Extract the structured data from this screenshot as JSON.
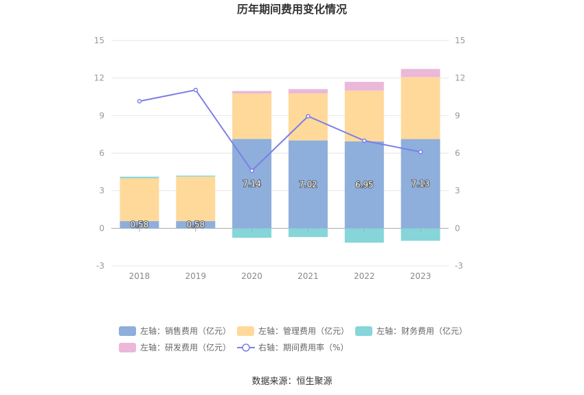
{
  "chart_data": {
    "type": "bar",
    "title": "历年期间费用变化情况",
    "categories": [
      "2018",
      "2019",
      "2020",
      "2021",
      "2022",
      "2023"
    ],
    "series": [
      {
        "name": "左轴：销售费用（亿元）",
        "axis": "left",
        "kind": "bar",
        "color": "#8eaedb",
        "values": [
          0.58,
          0.58,
          7.14,
          7.02,
          6.95,
          7.13
        ],
        "labels": [
          "0.58",
          "0.58",
          "7.14",
          "7.02",
          "6.95",
          "7.13"
        ]
      },
      {
        "name": "左轴：管理费用（亿元）",
        "axis": "left",
        "kind": "bar",
        "color": "#ffd99a",
        "values": [
          3.42,
          3.55,
          3.63,
          3.75,
          4.05,
          4.95
        ]
      },
      {
        "name": "左轴：财务费用（亿元）",
        "axis": "left",
        "kind": "bar",
        "color": "#86d5d9",
        "values": [
          0.12,
          0.08,
          -0.76,
          -0.7,
          -1.15,
          -1.0
        ]
      },
      {
        "name": "左轴：研发费用（亿元）",
        "axis": "left",
        "kind": "bar",
        "color": "#ebb8da",
        "values": [
          0.0,
          0.0,
          0.2,
          0.35,
          0.7,
          0.65
        ]
      },
      {
        "name": "右轴：期间费用率（%）",
        "axis": "right",
        "kind": "line",
        "color": "#7b7fe6",
        "values": [
          10.15,
          11.05,
          4.6,
          8.95,
          7.0,
          6.1
        ]
      }
    ],
    "y_left": {
      "min": -3,
      "max": 15,
      "ticks": [
        "15",
        "12",
        "9",
        "6",
        "3",
        "0",
        "-3"
      ]
    },
    "y_right": {
      "min": -3,
      "max": 15,
      "ticks": [
        "15",
        "12",
        "9",
        "6",
        "3",
        "0",
        "-3"
      ]
    },
    "grid": true,
    "legend_position": "bottom"
  },
  "source": "数据来源：恒生聚源"
}
